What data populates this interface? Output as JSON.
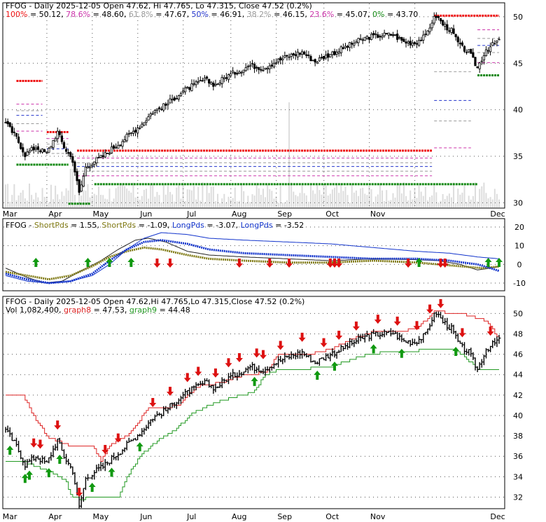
{
  "colors": {
    "background": "#ffffff",
    "grid": "#555555",
    "candle": "#000000",
    "volume": "#dddddd",
    "fib_red": "#ee1111",
    "fib_magenta": "#cc33aa",
    "fib_gray": "#999999",
    "fib_blue": "#2233cc",
    "fib_green": "#118811",
    "short_pds": "#807a14",
    "long_pds": "#1133cc",
    "arrow_up": "#119911",
    "arrow_down": "#dd1111",
    "graph8": "#dd2222",
    "graph9": "#229922"
  },
  "months": [
    "Mar",
    "Apr",
    "May",
    "Jun",
    "Jul",
    "Aug",
    "Sep",
    "Oct",
    "Nov",
    "Dec"
  ],
  "chart_data": [
    {
      "type": "candlestick",
      "title": "FFOG - Daily 2025-12-05 Open 47.62, Hi 47.765, Lo 47.315, Close 47.52 (0.2%)",
      "fib_legend": [
        {
          "label": "100%",
          "value": "50.12",
          "color": "#ee1111"
        },
        {
          "label": "78.6%",
          "value": "48.60",
          "color": "#cc33aa"
        },
        {
          "label": "61.8%",
          "value": "47.67",
          "color": "#999999"
        },
        {
          "label": "50%",
          "value": "46.91",
          "color": "#2233cc"
        },
        {
          "label": "38.2%",
          "value": "46.15",
          "color": "#999999"
        },
        {
          "label": "23.6%",
          "value": "45.07",
          "color": "#cc33aa"
        },
        {
          "label": "0%",
          "value": "43.70",
          "color": "#118811"
        }
      ],
      "ylim": [
        29.5,
        51.2
      ],
      "yticks": [
        30,
        35,
        40,
        45,
        50
      ],
      "grid": true,
      "price_anchors": [
        [
          0,
          38.6
        ],
        [
          5,
          37.0
        ],
        [
          9,
          35.2
        ],
        [
          14,
          36.0
        ],
        [
          19,
          35.3
        ],
        [
          24,
          37.6
        ],
        [
          27,
          36.0
        ],
        [
          31,
          34.6
        ],
        [
          34,
          31.0
        ],
        [
          37,
          33.8
        ],
        [
          41,
          34.5
        ],
        [
          45,
          35.0
        ],
        [
          49,
          35.8
        ],
        [
          53,
          36.5
        ],
        [
          58,
          37.5
        ],
        [
          63,
          38.5
        ],
        [
          68,
          39.8
        ],
        [
          74,
          40.5
        ],
        [
          79,
          41.5
        ],
        [
          85,
          42.4
        ],
        [
          92,
          43.2
        ],
        [
          97,
          42.7
        ],
        [
          102,
          43.6
        ],
        [
          108,
          44.2
        ],
        [
          113,
          44.8
        ],
        [
          119,
          44.5
        ],
        [
          125,
          45.2
        ],
        [
          131,
          45.8
        ],
        [
          137,
          46.2
        ],
        [
          143,
          45.2
        ],
        [
          149,
          45.9
        ],
        [
          155,
          46.5
        ],
        [
          161,
          47.2
        ],
        [
          167,
          47.8
        ],
        [
          173,
          48.0
        ],
        [
          179,
          48.1
        ],
        [
          184,
          47.3
        ],
        [
          189,
          47.2
        ],
        [
          194,
          47.9
        ],
        [
          197,
          49.5
        ],
        [
          199,
          50.1
        ],
        [
          202,
          49.2
        ],
        [
          206,
          48.5
        ],
        [
          210,
          46.8
        ],
        [
          214,
          46.2
        ],
        [
          218,
          44.5
        ],
        [
          222,
          46.5
        ],
        [
          226,
          47.1
        ],
        [
          228,
          47.5
        ]
      ],
      "fib_segments": [
        {
          "color": "#ee1111",
          "style": "dotted",
          "x1": 5,
          "x2": 17,
          "y": 43.1
        },
        {
          "color": "#cc33aa",
          "style": "dashed",
          "x1": 5,
          "x2": 17,
          "y": 40.6
        },
        {
          "color": "#999999",
          "style": "dashed",
          "x1": 5,
          "x2": 17,
          "y": 39.9
        },
        {
          "color": "#2233cc",
          "style": "dashed",
          "x1": 5,
          "x2": 17,
          "y": 39.4
        },
        {
          "color": "#999999",
          "style": "dashed",
          "x1": 5,
          "x2": 17,
          "y": 38.5
        },
        {
          "color": "#cc33aa",
          "style": "dashed",
          "x1": 5,
          "x2": 17,
          "y": 37.7
        },
        {
          "color": "#118811",
          "style": "dotted",
          "x1": 5,
          "x2": 29,
          "y": 34.1
        },
        {
          "color": "#ee1111",
          "style": "dotted",
          "x1": 19,
          "x2": 29,
          "y": 37.6
        },
        {
          "color": "#cc33aa",
          "style": "dashed",
          "x1": 19,
          "x2": 29,
          "y": 36.9
        },
        {
          "color": "#999999",
          "style": "dashed",
          "x1": 19,
          "x2": 29,
          "y": 36.3
        },
        {
          "color": "#2233cc",
          "style": "dashed",
          "x1": 19,
          "x2": 29,
          "y": 35.8
        },
        {
          "color": "#999999",
          "style": "dashed",
          "x1": 19,
          "x2": 29,
          "y": 35.3
        },
        {
          "color": "#118811",
          "style": "dotted",
          "x1": 29,
          "x2": 39,
          "y": 29.9
        },
        {
          "color": "#ee1111",
          "style": "dotted",
          "x1": 33,
          "x2": 197,
          "y": 35.6
        },
        {
          "color": "#cc33aa",
          "style": "dashed",
          "x1": 33,
          "x2": 197,
          "y": 34.8
        },
        {
          "color": "#999999",
          "style": "dashed",
          "x1": 33,
          "x2": 197,
          "y": 34.3
        },
        {
          "color": "#2233cc",
          "style": "dashed",
          "x1": 33,
          "x2": 197,
          "y": 33.9
        },
        {
          "color": "#999999",
          "style": "dashed",
          "x1": 33,
          "x2": 197,
          "y": 33.4
        },
        {
          "color": "#cc33aa",
          "style": "dashed",
          "x1": 33,
          "x2": 197,
          "y": 32.9
        },
        {
          "color": "#118811",
          "style": "dotted",
          "x1": 41,
          "x2": 218,
          "y": 32.0
        },
        {
          "color": "#ee1111",
          "style": "dotted",
          "x1": 198,
          "x2": 228,
          "y": 50.12
        },
        {
          "color": "#cc33aa",
          "style": "dashed",
          "x1": 218,
          "x2": 228,
          "y": 48.6
        },
        {
          "color": "#999999",
          "style": "dashed",
          "x1": 218,
          "x2": 228,
          "y": 47.67
        },
        {
          "color": "#2233cc",
          "style": "dashed",
          "x1": 218,
          "x2": 228,
          "y": 46.91
        },
        {
          "color": "#999999",
          "style": "dashed",
          "x1": 218,
          "x2": 228,
          "y": 46.15
        },
        {
          "color": "#cc33aa",
          "style": "dashed",
          "x1": 218,
          "x2": 228,
          "y": 45.07
        },
        {
          "color": "#118811",
          "style": "dotted",
          "x1": 218,
          "x2": 228,
          "y": 43.7
        },
        {
          "color": "#999999",
          "style": "dashed",
          "x1": 198,
          "x2": 215,
          "y": 44.1
        },
        {
          "color": "#2233cc",
          "style": "dashed",
          "x1": 198,
          "x2": 215,
          "y": 41.0
        },
        {
          "color": "#999999",
          "style": "dashed",
          "x1": 198,
          "x2": 215,
          "y": 38.8
        },
        {
          "color": "#cc33aa",
          "style": "dashed",
          "x1": 198,
          "x2": 215,
          "y": 35.9
        }
      ]
    },
    {
      "type": "line",
      "title": "FFOG",
      "legend": [
        {
          "label": "ShortPds",
          "value": "1.55",
          "color": "#807a14"
        },
        {
          "label": "ShortPds",
          "value": "-1.09",
          "color": "#807a14"
        },
        {
          "label": "LongPds",
          "value": "-3.07",
          "color": "#1133cc"
        },
        {
          "label": "LongPds",
          "value": "-3.52",
          "color": "#1133cc"
        }
      ],
      "ylim": [
        -13,
        23
      ],
      "yticks": [
        -10,
        0,
        10,
        20
      ],
      "grid": true,
      "series": [
        {
          "anchors": [
            [
              0,
              -2
            ],
            [
              10,
              -7
            ],
            [
              18,
              -10
            ],
            [
              26,
              -9
            ],
            [
              34,
              -4
            ],
            [
              44,
              2
            ],
            [
              52,
              8
            ],
            [
              60,
              13
            ],
            [
              66,
              14
            ],
            [
              74,
              12
            ],
            [
              84,
              7
            ],
            [
              94,
              5
            ],
            [
              110,
              4
            ],
            [
              130,
              3
            ],
            [
              150,
              2
            ],
            [
              170,
              3
            ],
            [
              190,
              2.5
            ],
            [
              200,
              2
            ],
            [
              210,
              0
            ],
            [
              218,
              -3
            ],
            [
              224,
              -2
            ],
            [
              228,
              -1.1
            ]
          ],
          "style": "thin",
          "color": "#222222"
        },
        {
          "anchors": [
            [
              0,
              -4
            ],
            [
              10,
              -6
            ],
            [
              20,
              -8
            ],
            [
              30,
              -6
            ],
            [
              40,
              -1
            ],
            [
              48,
              4
            ],
            [
              56,
              7
            ],
            [
              64,
              9
            ],
            [
              72,
              8
            ],
            [
              84,
              5
            ],
            [
              94,
              3
            ],
            [
              110,
              2
            ],
            [
              130,
              1
            ],
            [
              150,
              1
            ],
            [
              170,
              2
            ],
            [
              190,
              1
            ],
            [
              200,
              0
            ],
            [
              210,
              -1
            ],
            [
              220,
              -2
            ],
            [
              228,
              -1.1
            ]
          ],
          "style": "thick",
          "color": "#807a14"
        },
        {
          "anchors": [
            [
              0,
              -6
            ],
            [
              10,
              -9
            ],
            [
              20,
              -10
            ],
            [
              30,
              -9
            ],
            [
              40,
              -6
            ],
            [
              48,
              0
            ],
            [
              56,
              8
            ],
            [
              64,
              14
            ],
            [
              72,
              17
            ],
            [
              84,
              16
            ],
            [
              94,
              14
            ],
            [
              110,
              13
            ],
            [
              130,
              12
            ],
            [
              150,
              11
            ],
            [
              170,
              9
            ],
            [
              190,
              7
            ],
            [
              205,
              6
            ],
            [
              218,
              4
            ],
            [
              228,
              3
            ]
          ],
          "style": "thin",
          "color": "#1133cc"
        },
        {
          "anchors": [
            [
              0,
              -5
            ],
            [
              10,
              -8
            ],
            [
              20,
              -10
            ],
            [
              30,
              -9
            ],
            [
              40,
              -5
            ],
            [
              48,
              2
            ],
            [
              56,
              8
            ],
            [
              64,
              12
            ],
            [
              72,
              13
            ],
            [
              84,
              11
            ],
            [
              94,
              8
            ],
            [
              110,
              6
            ],
            [
              130,
              5
            ],
            [
              150,
              4
            ],
            [
              170,
              3
            ],
            [
              190,
              3
            ],
            [
              205,
              2
            ],
            [
              218,
              0
            ],
            [
              224,
              -2
            ],
            [
              228,
              -3.5
            ]
          ],
          "style": "dots",
          "color": "#1133cc"
        }
      ],
      "up_arrows": [
        14,
        38,
        48,
        58,
        191,
        223,
        228
      ],
      "down_arrows": [
        70,
        76,
        108,
        122,
        131,
        150,
        152,
        154,
        186,
        201,
        203
      ]
    },
    {
      "type": "candlestick",
      "title": "FFOG - Daily 2025-12-05 Open 47.62,Hi 47.765,Lo 47.315,Close 47.52 (0.2%)",
      "legend": [
        {
          "label": "Vol",
          "value": "1,082,400",
          "color": "#000000"
        },
        {
          "label": "graph8",
          "value": "= 47.53,",
          "color": "#dd2222"
        },
        {
          "label": "graph9",
          "value": "= 44.48",
          "color": "#229922"
        }
      ],
      "ylim": [
        31.0,
        51.4
      ],
      "yticks": [
        32,
        34,
        36,
        38,
        40,
        42,
        44,
        46,
        48,
        50
      ],
      "grid": true,
      "graph8_anchors": [
        [
          0,
          42.0
        ],
        [
          8,
          42.0
        ],
        [
          14,
          39.5
        ],
        [
          20,
          37.8
        ],
        [
          30,
          37.0
        ],
        [
          40,
          37.0
        ],
        [
          44,
          35.5
        ],
        [
          48,
          37.0
        ],
        [
          52,
          37.5
        ],
        [
          56,
          38.0
        ],
        [
          60,
          39.0
        ],
        [
          66,
          40.8
        ],
        [
          74,
          40.8
        ],
        [
          80,
          41.0
        ],
        [
          84,
          42.0
        ],
        [
          90,
          43.0
        ],
        [
          100,
          43.2
        ],
        [
          106,
          43.8
        ],
        [
          112,
          44.0
        ],
        [
          120,
          44.2
        ],
        [
          126,
          46.0
        ],
        [
          140,
          46.0
        ],
        [
          150,
          46.5
        ],
        [
          160,
          47.5
        ],
        [
          170,
          48.2
        ],
        [
          180,
          48.2
        ],
        [
          190,
          48.5
        ],
        [
          198,
          50.2
        ],
        [
          210,
          50.0
        ],
        [
          222,
          49.3
        ],
        [
          228,
          47.5
        ]
      ],
      "graph9_anchors": [
        [
          0,
          35.5
        ],
        [
          8,
          35.5
        ],
        [
          14,
          35.0
        ],
        [
          20,
          34.5
        ],
        [
          28,
          33.5
        ],
        [
          30,
          32.2
        ],
        [
          34,
          31.8
        ],
        [
          40,
          32.0
        ],
        [
          52,
          32.0
        ],
        [
          56,
          34.0
        ],
        [
          62,
          36.0
        ],
        [
          70,
          37.5
        ],
        [
          78,
          38.5
        ],
        [
          86,
          40.2
        ],
        [
          96,
          41.2
        ],
        [
          108,
          42.0
        ],
        [
          114,
          42.2
        ],
        [
          120,
          44.0
        ],
        [
          126,
          44.5
        ],
        [
          134,
          44.5
        ],
        [
          150,
          44.8
        ],
        [
          160,
          45.5
        ],
        [
          168,
          46.0
        ],
        [
          176,
          46.2
        ],
        [
          186,
          46.2
        ],
        [
          194,
          46.5
        ],
        [
          206,
          46.5
        ],
        [
          212,
          45.8
        ],
        [
          218,
          44.5
        ],
        [
          228,
          44.48
        ]
      ],
      "up_arrows": [
        2,
        9,
        11,
        20,
        25,
        40,
        49,
        62,
        115,
        144,
        152,
        170,
        183,
        208
      ],
      "down_arrows": [
        13,
        16,
        24,
        34,
        46,
        52,
        68,
        76,
        84,
        89,
        97,
        103,
        108,
        116,
        119,
        127,
        137,
        147,
        154,
        162,
        172,
        181,
        190,
        196,
        201,
        211,
        224
      ]
    }
  ]
}
